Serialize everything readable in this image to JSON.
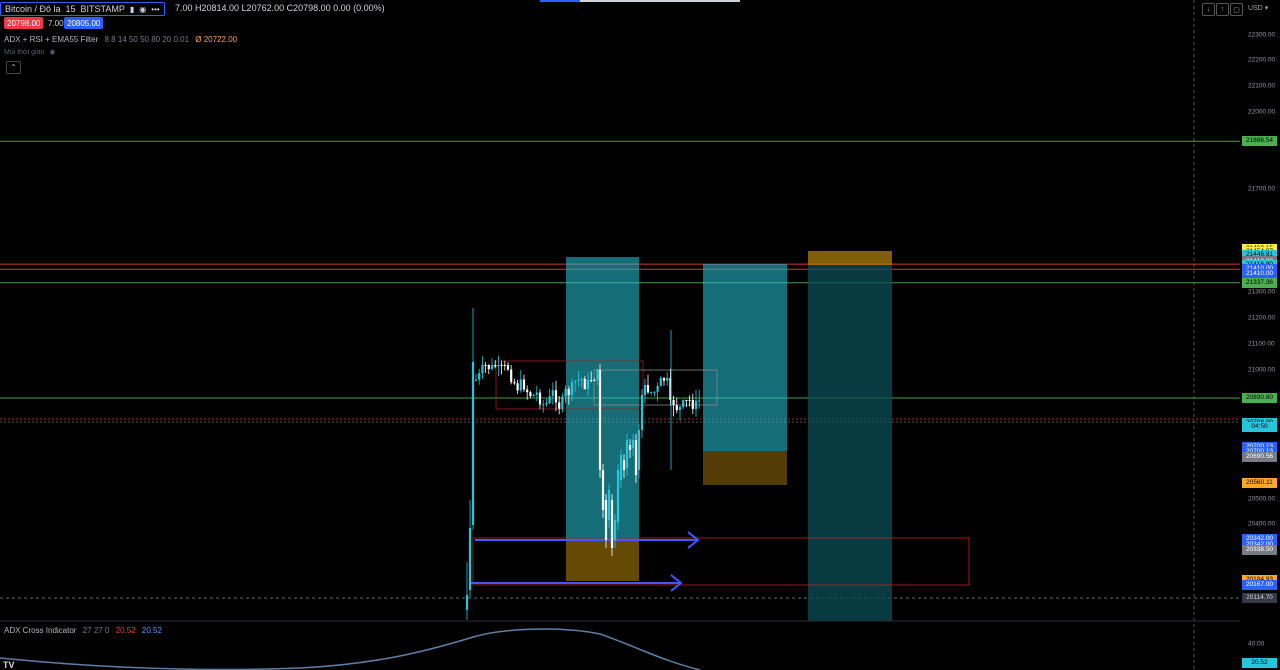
{
  "header": {
    "symbol": "Bitcoin / Đô la",
    "interval": "15",
    "exchange": "BITSTAMP",
    "ohlc": "7.00  H20814.00  L20762.00  C20798.00  0.00 (0.00%)",
    "sell_price": "20798.00",
    "spread": "7.00",
    "buy_price": "20805.00"
  },
  "indicator_main": {
    "name": "ADX + RSI + EMA55 Filter",
    "params": "8 8 14 50 50 80 20 0.01",
    "value_prefix": "Ø",
    "value": "20722.00"
  },
  "timezone_label": "Múi thời gian",
  "currency": "USD",
  "price_axis": {
    "ticks": [
      {
        "label": "22300.00",
        "price": 22300
      },
      {
        "label": "22200.00",
        "price": 22200
      },
      {
        "label": "22100.00",
        "price": 22100
      },
      {
        "label": "22000.00",
        "price": 22000
      },
      {
        "label": "21700.00",
        "price": 21700
      },
      {
        "label": "21300.00",
        "price": 21300
      },
      {
        "label": "21200.00",
        "price": 21200
      },
      {
        "label": "21100.00",
        "price": 21100
      },
      {
        "label": "21000.00",
        "price": 21000
      },
      {
        "label": "20500.00",
        "price": 20500
      },
      {
        "label": "20400.00",
        "price": 20400
      }
    ],
    "tags": [
      {
        "label": "21886.54",
        "price": 21886.54,
        "bg": "#4caf50",
        "fg": "#000000"
      },
      {
        "label": "21468.15",
        "price": 21468.15,
        "bg": "#ffeb3b",
        "fg": "#000000"
      },
      {
        "label": "21454.97",
        "price": 21454.97,
        "bg": "#ffeb3b",
        "fg": "#000000"
      },
      {
        "label": "21446.91",
        "price": 21446.91,
        "bg": "#26c6da",
        "fg": "#000000"
      },
      {
        "label": "21421.14",
        "price": 21421.14,
        "bg": "#787b86",
        "fg": "#ffffff"
      },
      {
        "label": "21418.80",
        "price": 21418.8,
        "bg": "#787b86",
        "fg": "#ffffff"
      },
      {
        "label": "21416.80",
        "price": 21405,
        "bg": "#26c6da",
        "fg": "#000000"
      },
      {
        "label": "21410.00",
        "price": 21390,
        "bg": "#2962ff",
        "fg": "#ffffff"
      },
      {
        "label": "21410.00",
        "price": 21370,
        "bg": "#2962ff",
        "fg": "#ffffff"
      },
      {
        "label": "21337.36",
        "price": 21337.36,
        "bg": "#4caf50",
        "fg": "#000000"
      },
      {
        "label": "20890.60",
        "price": 20890.6,
        "bg": "#4caf50",
        "fg": "#000000"
      },
      {
        "label": "20798.00",
        "price": 20795,
        "bg": "#26c6da",
        "fg": "#000000"
      },
      {
        "label": "04:50",
        "price": 20779,
        "bg": "#26c6da",
        "fg": "#000000"
      },
      {
        "label": "20700.13",
        "price": 20700.13,
        "bg": "#2962ff",
        "fg": "#ffffff"
      },
      {
        "label": "20700.13",
        "price": 20680,
        "bg": "#2962ff",
        "fg": "#ffffff"
      },
      {
        "label": "20690.56",
        "price": 20660,
        "bg": "#787b86",
        "fg": "#ffffff"
      },
      {
        "label": "20560.11",
        "price": 20560.11,
        "bg": "#ffa726",
        "fg": "#000000"
      },
      {
        "label": "20342.00",
        "price": 20342,
        "bg": "#2962ff",
        "fg": "#ffffff"
      },
      {
        "label": "20342.00",
        "price": 20322,
        "bg": "#2962ff",
        "fg": "#ffffff"
      },
      {
        "label": "20338.50",
        "price": 20302,
        "bg": "#787b86",
        "fg": "#ffffff"
      },
      {
        "label": "20184.93",
        "price": 20184.93,
        "bg": "#ffa726",
        "fg": "#000000"
      },
      {
        "label": "20167.00",
        "price": 20164,
        "bg": "#2962ff",
        "fg": "#ffffff"
      },
      {
        "label": "20114.70",
        "price": 20114.7,
        "bg": "#363a45",
        "fg": "#d1d4dc"
      }
    ]
  },
  "adx_panel": {
    "name": "ADX Cross Indicator",
    "params": "27 27 0",
    "value_red": "20.52",
    "value_blue": "20.52",
    "axis_label": "40.00",
    "tag": "20.52"
  },
  "colors": {
    "bull": "#26c6da",
    "bear": "#ffffff",
    "green_line": "#4caf50",
    "red_line": "#f23645",
    "arrow": "#3d5afe",
    "target_zone": "#26c6da",
    "stop_zone": "#b8860b"
  },
  "icons": [
    "eye-icon",
    "more-icon",
    "collapse-icon",
    "arrow-down-icon",
    "arrow-up-icon",
    "camera-icon",
    "settings-icon",
    "tradingview-logo-icon"
  ]
}
